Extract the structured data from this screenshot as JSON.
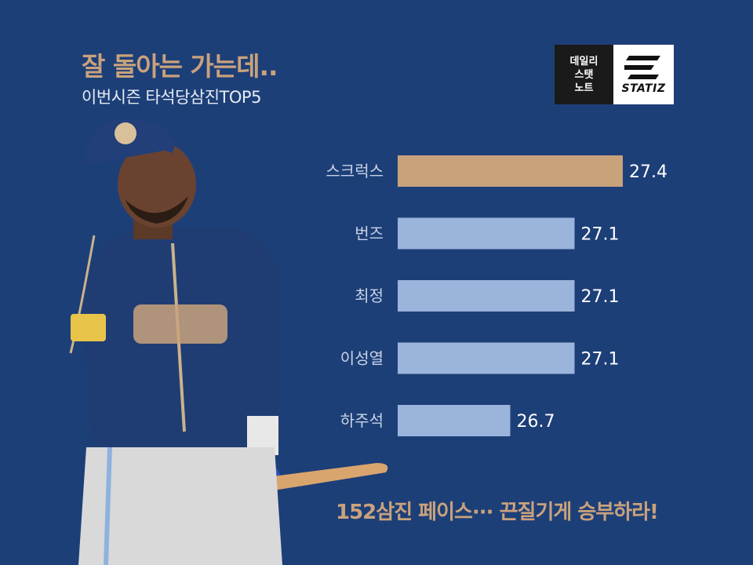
{
  "header": {
    "title": "잘 돌아는 가는데..",
    "subtitle": "이번시즌 타석당삼진TOP5"
  },
  "logo": {
    "left_lines": [
      "데일리",
      "스탯",
      "노트"
    ],
    "brand": "STATIZ"
  },
  "footer": {
    "text": "152삼진 페이스··· 끈질기게 승부하라!"
  },
  "colors": {
    "background": "#1d3f78",
    "highlight_bar": "#c9a27c",
    "normal_bar": "#9ab4db",
    "accent_text": "#c9a27c"
  },
  "chart_data": {
    "type": "bar",
    "orientation": "horizontal",
    "categories": [
      "스크럭스",
      "번즈",
      "최정",
      "이성열",
      "하주석"
    ],
    "values": [
      27.4,
      27.1,
      27.1,
      27.1,
      26.7
    ],
    "value_labels": [
      "27.4",
      "27.1",
      "27.1",
      "27.1",
      "26.7"
    ],
    "highlight_index": 0,
    "xlim": [
      26.0,
      27.4
    ],
    "grid": false,
    "legend": "none"
  }
}
